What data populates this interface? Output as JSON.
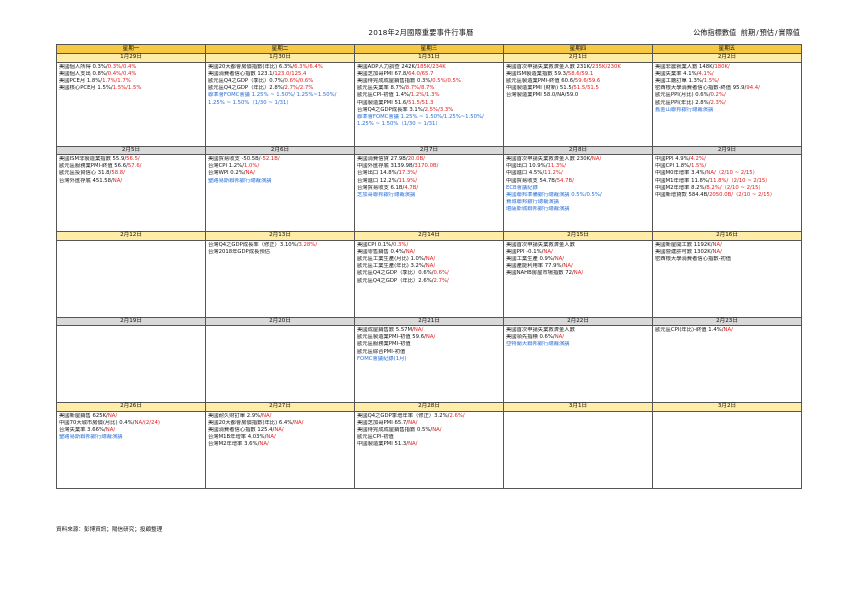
{
  "title": "2018年2月國際重要事件行事曆",
  "legend": {
    "label": "公佈指標數值",
    "prev": "前期",
    "fcst": "預估",
    "actual": "實際值"
  },
  "weekdays": [
    "星期一",
    "星期二",
    "星期三",
    "星期四",
    "星期五"
  ],
  "weeks": [
    {
      "dates": [
        "1月29日",
        "1月30日",
        "1月31日",
        "2月1日",
        "2月2日"
      ],
      "gray": false,
      "cells": [
        [
          {
            "t": "美國個人所得 0.3%/",
            "r": "0.3%/0.4%"
          },
          {
            "t": "美國個人支出 0.8%/",
            "r": "0.4%/0.4%"
          },
          {
            "t": "美國PCE月 1.8%/",
            "r": "1.7%/1.7%"
          },
          {
            "t": "美國核心PCE月 1.5%/",
            "r": "1.5%/1.5%"
          }
        ],
        [
          {
            "t": "美國20大都會房價指數(年比) 6.3%/",
            "r": "6.3%/6.4%"
          },
          {
            "t": "美國消費者信心指數 123.1/",
            "r": "123.0/125.4"
          },
          {
            "t": "歐元區Q4之GDP（季比）0.7%/",
            "r": "0.6%/0.6%"
          },
          {
            "t": "歐元區Q4之GDP（年比）2.8%/",
            "r": "2.7%/2.7%"
          },
          {
            "t": "",
            "b": "聯準會FOMC會議 1.25% ~ 1.50%/ 1.25%~1.50%/"
          },
          {
            "t": "",
            "b": "1.25% ~ 1.50%（1/30 ~ 1/31）"
          }
        ],
        [
          {
            "t": "美國ADP人力調查 242K/",
            "r": "185K/234K"
          },
          {
            "t": "美國芝加哥PMI 67.8/",
            "r": "64.0/65.7"
          },
          {
            "t": "美國待完成成屋銷售指數 0.3%/",
            "r": "0.5%/0.5%"
          },
          {
            "t": "歐元區失業率 8.7%/",
            "r": "8.7%/8.7%"
          },
          {
            "t": "歐元區CPI-初值 1.4%/",
            "r": "1.2%/1.3%"
          },
          {
            "t": "中國製造業PMI 51.6/",
            "r": "51.5/51.3"
          },
          {
            "t": "台灣Q4之GDP成長率 3.1%/",
            "r": "2.5%/3.3%"
          },
          {
            "t": "",
            "b": "聯準會FOMC會議 1.25% ~ 1.50%/1.25%~1.50%/"
          },
          {
            "t": "",
            "b": "1.25% ~ 1.50%（1/30 ~ 1/31）"
          }
        ],
        [
          {
            "t": "美國首次申請失業救濟金人數 231K/",
            "r": "235K/230K"
          },
          {
            "t": "美國ISM製造業指數 59.3/",
            "r": "58.6/59.1"
          },
          {
            "t": "歐元區製造業PMI-終值 60.6/",
            "r": "59.6/59.6"
          },
          {
            "t": "中國製造業PMI (財新) 51.5/",
            "r": "51.5/51.5"
          },
          {
            "t": "台灣製造業PMI 58.0/NA/59.0"
          }
        ],
        [
          {
            "t": "美國非農就業人數 148K/",
            "r": "180K/"
          },
          {
            "t": "美國失業率 4.1%/",
            "r": "4.1%/"
          },
          {
            "t": "美國工廠訂單 1.3%/",
            "r": "1.5%/"
          },
          {
            "t": "密西根大學消費者信心指數-終值 95.9/",
            "r": "94.4/"
          },
          {
            "t": "歐元區PPI(月比) 0.6%/",
            "r": "0.2%/"
          },
          {
            "t": "歐元區PPI(年比) 2.8%/",
            "r": "2.3%/"
          },
          {
            "t": "",
            "b": "舊金山聯邦銀行總裁演講"
          }
        ]
      ]
    },
    {
      "dates": [
        "2月5日",
        "2月6日",
        "2月7日",
        "2月8日",
        "2月9日"
      ],
      "gray": true,
      "cells": [
        [
          {
            "t": "美國ISM非製造業指數 55.9/",
            "r": "56.5/"
          },
          {
            "t": "歐元區服務業PMI-終值 56.6/",
            "r": "57.6/"
          },
          {
            "t": "歐元區投資信心 31.8/",
            "r": "58.8/"
          },
          {
            "t": "台灣外匯存底 451.58/",
            "r": "NA/"
          }
        ],
        [
          {
            "t": "美國貿易收支 -50.5B/",
            "r": "-52.1B/"
          },
          {
            "t": "台灣CPI 1.2%/",
            "r": "1.0%/"
          },
          {
            "t": "台灣WPI 0.2%/",
            "r": "NA/"
          },
          {
            "t": "",
            "b": "聖路易斯聯邦銀行總裁演講"
          }
        ],
        [
          {
            "t": "美國消費信貸 27.9B/",
            "r": "20.0B/"
          },
          {
            "t": "中國外匯存底 3139.9B/",
            "r": "3170.0B/"
          },
          {
            "t": "台灣出口 14.8%/",
            "r": "17.3%/"
          },
          {
            "t": "台灣進口 12.2%/",
            "r": "11.9%/"
          },
          {
            "t": "台灣貿易收支 6.1B/",
            "r": "4.7B/"
          },
          {
            "t": "",
            "b": "芝加哥聯邦銀行總裁演講"
          }
        ],
        [
          {
            "t": "美國首次申請失業救濟金人數 230K/",
            "r": "NA/"
          },
          {
            "t": "中國出口 10.9%/",
            "r": "11.3%/"
          },
          {
            "t": "中國進口 4.5%/",
            "r": "11.2%/"
          },
          {
            "t": "中國貿易收支 54.7B/",
            "r": "54.7B/"
          },
          {
            "t": "",
            "b": "ECB會議紀錄"
          },
          {
            "t": "",
            "b": "美國聯邦準備銀行總裁演講 0.5%/0.5%/"
          },
          {
            "t": "",
            "b": "費城聯邦銀行總裁演講"
          },
          {
            "t": "",
            "b": "堪薩斯城聯邦銀行總裁演講"
          }
        ],
        [
          {
            "t": "中國PPI 4.9%/",
            "r": "4.2%/"
          },
          {
            "t": "中國CPI 1.8%/",
            "r": "1.5%/"
          },
          {
            "t": "中國M0年增率 3.4%/",
            "r": "NA/（2/10 ~ 2/15）"
          },
          {
            "t": "中國M1年增率 11.8%/",
            "r": "11.8%/（2/10 ~ 2/15）"
          },
          {
            "t": "中國M2年增率 8.2%/",
            "r": "8.2%/（2/10 ~ 2/15）"
          },
          {
            "t": "中國新增貸款 584.4B/",
            "r": "2050.0B/（2/10 ~ 2/15）"
          }
        ]
      ]
    },
    {
      "dates": [
        "2月12日",
        "2月13日",
        "2月14日",
        "2月15日",
        "2月16日"
      ],
      "gray": false,
      "cells": [
        [],
        [
          {
            "t": "台灣Q4之GDP成長率（修正）3.10%/",
            "r": "3.28%/"
          },
          {
            "t": "台灣2018年GDP成長預估"
          }
        ],
        [
          {
            "t": "美國CPI 0.1%/",
            "r": "0.3%/"
          },
          {
            "t": "美國零售銷售 0.4%/",
            "r": "NA/"
          },
          {
            "t": "歐元區工業生產(月比) 1.0%/",
            "r": "NA/"
          },
          {
            "t": "歐元區工業生產(年比) 3.2%/",
            "r": "NA/"
          },
          {
            "t": "歐元區Q4之GDP（季比）0.6%/",
            "r": "0.6%/"
          },
          {
            "t": "歐元區Q4之GDP（年比）2.6%/",
            "r": "2.7%/"
          }
        ],
        [
          {
            "t": "美國首次申請失業救濟金人數"
          },
          {
            "t": "美國PPI -0.1%/",
            "r": "NA/"
          },
          {
            "t": "美國工業生產 0.9%/",
            "r": "NA/"
          },
          {
            "t": "美國產能利用率 77.9%/",
            "r": "NA/"
          },
          {
            "t": "美國NAHB房屋市場指數 72/",
            "r": "NA/"
          }
        ],
        [
          {
            "t": "美國新屋開工數 1192K/",
            "r": "NA/"
          },
          {
            "t": "美國營建許可數 1302K/",
            "r": "NA/"
          },
          {
            "t": "密西根大學消費者信心指數-初值"
          }
        ]
      ]
    },
    {
      "dates": [
        "2月19日",
        "2月20日",
        "2月21日",
        "2月22日",
        "2月23日"
      ],
      "gray": true,
      "cells": [
        [],
        [],
        [
          {
            "t": "美國成屋銷售數 5.57M/",
            "r": "NA/"
          },
          {
            "t": "歐元區製造業PMI-初值 59.6/",
            "r": "NA/"
          },
          {
            "t": "歐元區服務業PMI-初值"
          },
          {
            "t": "歐元區綜合PMI-初值"
          },
          {
            "t": "",
            "b": "FOMC會議紀錄(1月)"
          }
        ],
        [
          {
            "t": "美國首次申請失業救濟金人數"
          },
          {
            "t": "美國領先指標 0.6%/",
            "r": "NA/"
          },
          {
            "t": "",
            "b": "亞特蘭大聯邦銀行總裁演講"
          }
        ],
        [
          {
            "t": "歐元區CPI(年比)-終值 1.4%/",
            "r": "NA/"
          }
        ]
      ]
    },
    {
      "dates": [
        "2月26日",
        "2月27日",
        "2月28日",
        "3月1日",
        "3月2日"
      ],
      "gray": false,
      "cells": [
        [
          {
            "t": "美國新屋銷售 625K/",
            "r": "NA/"
          },
          {
            "t": "中國70大城市房價(月比) 0.4%/",
            "r": "NA/(2/24)"
          },
          {
            "t": "台灣失業率 3.66%/",
            "r": "NA/"
          },
          {
            "t": "",
            "b": "聖路易斯聯邦銀行總裁演講"
          }
        ],
        [
          {
            "t": "美國耐久財訂單 2.9%/",
            "r": "NA/"
          },
          {
            "t": "美國20大都會房價指數(年比) 6.4%/",
            "r": "NA/"
          },
          {
            "t": "美國消費者信心指數 125.4/",
            "r": "NA/"
          },
          {
            "t": "台灣M1B年增率 4.03%/",
            "r": "NA/"
          },
          {
            "t": "台灣M2年增率 3.6%/",
            "r": "NA/"
          }
        ],
        [
          {
            "t": "美國Q4之GDP季增年率（修正）3.2%/",
            "r": "2.6%/"
          },
          {
            "t": "美國芝加哥PMI 65.7/",
            "r": "NA/"
          },
          {
            "t": "美國待完成成屋銷售指數 0.5%/",
            "r": "NA/"
          },
          {
            "t": "歐元區CPI-初值"
          },
          {
            "t": "中國製造業PMI 51.3/",
            "r": "NA/"
          }
        ],
        [],
        []
      ]
    }
  ],
  "source": "資料來源：彭博資訊；陽信研究；投顧整理"
}
